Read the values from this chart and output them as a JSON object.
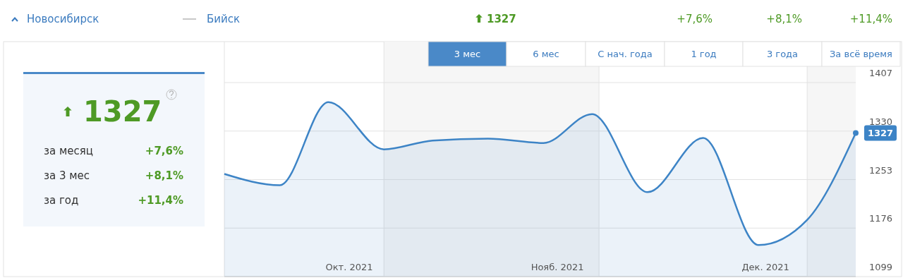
{
  "chart_data": {
    "type": "area",
    "x": [
      "2021-09-08",
      "2021-09-16",
      "2021-09-23",
      "2021-10-01",
      "2021-10-08",
      "2021-10-16",
      "2021-10-24",
      "2021-10-31",
      "2021-11-08",
      "2021-11-16",
      "2021-11-24",
      "2021-12-01",
      "2021-12-08"
    ],
    "values": [
      1262,
      1244,
      1376,
      1301,
      1315,
      1318,
      1311,
      1357,
      1233,
      1319,
      1149,
      1189,
      1327
    ],
    "value_labels": [
      null,
      null,
      null,
      null,
      null,
      null,
      null,
      null,
      null,
      null,
      null,
      null,
      "1327"
    ],
    "color": "#3d84c6",
    "xlim": [
      "2021-09-08",
      "2021-12-08"
    ],
    "xticks": [
      {
        "value": "2021-09-26",
        "label": "Окт. 2021"
      },
      {
        "value": "2021-10-26",
        "label": "Нояб. 2021"
      },
      {
        "value": "2021-11-25",
        "label": "Дек. 2021"
      }
    ],
    "ylim": [
      1099,
      1407
    ],
    "yticks": [
      1099,
      1176,
      1253,
      1330,
      1407
    ],
    "grid": "y",
    "bands": [
      {
        "axis": "x",
        "from": "2021-10-01",
        "to": "2021-11-01",
        "color": "#f6f6f6"
      },
      {
        "axis": "x",
        "from": "2021-12-01",
        "to": "2021-12-08",
        "color": "#f6f6f6"
      }
    ],
    "annotations": [
      "Новосибирск",
      "Бийск",
      "1327",
      "+7,6%",
      "+8,1%",
      "+11,4%",
      "1327",
      "за месяц",
      "+7,6%",
      "за 3 мес",
      "+8,1%",
      "за год",
      "+11,4%",
      "3 мес",
      "6 мес",
      "С нач. года",
      "1 год",
      "3 года",
      "За всё время"
    ]
  }
}
